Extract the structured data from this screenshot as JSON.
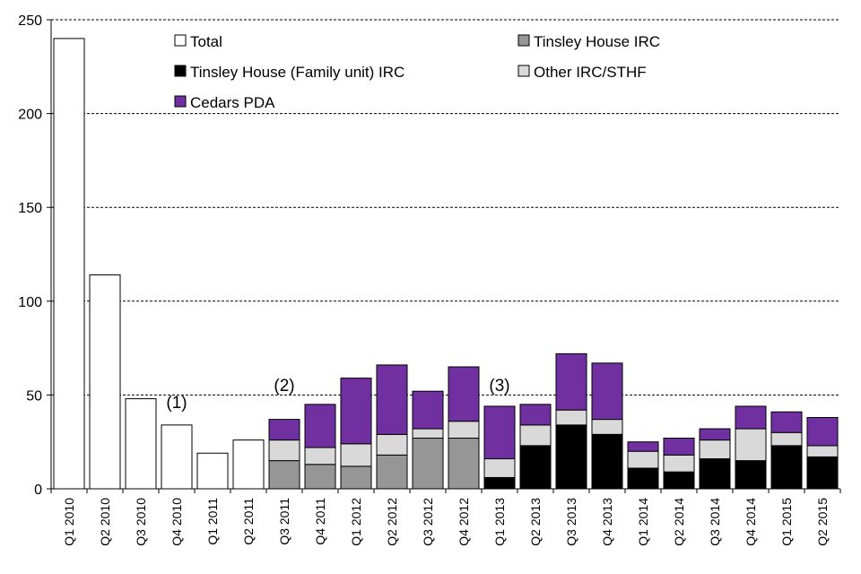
{
  "chart_data": {
    "type": "bar",
    "stacked": true,
    "title": "",
    "xlabel": "",
    "ylabel": "",
    "ylim": [
      0,
      250
    ],
    "yticks": [
      0,
      50,
      100,
      150,
      200,
      250
    ],
    "grid": "horizontal-dashed",
    "legend_position": "top-right",
    "categories": [
      "Q1 2010",
      "Q2 2010",
      "Q3 2010",
      "Q4 2010",
      "Q1 2011",
      "Q2 2011",
      "Q3 2011",
      "Q4 2011",
      "Q1 2012",
      "Q2 2012",
      "Q3 2012",
      "Q4 2012",
      "Q1 2013",
      "Q2 2013",
      "Q3 2013",
      "Q4 2013",
      "Q1 2014",
      "Q2 2014",
      "Q3 2014",
      "Q4 2014",
      "Q1 2015",
      "Q2 2015"
    ],
    "series": [
      {
        "name": "Total",
        "color": "#ffffff",
        "values": [
          240,
          114,
          48,
          34,
          19,
          26,
          0,
          0,
          0,
          0,
          0,
          0,
          0,
          0,
          0,
          0,
          0,
          0,
          0,
          0,
          0,
          0
        ]
      },
      {
        "name": "Tinsley House (Family unit) IRC",
        "color": "#000000",
        "values": [
          0,
          0,
          0,
          0,
          0,
          0,
          0,
          0,
          0,
          0,
          0,
          0,
          6,
          23,
          34,
          29,
          11,
          9,
          16,
          15,
          23,
          17
        ]
      },
      {
        "name": "Tinsley House IRC",
        "color": "#969696",
        "values": [
          0,
          0,
          0,
          0,
          0,
          0,
          15,
          13,
          12,
          18,
          27,
          27,
          0,
          0,
          0,
          0,
          0,
          0,
          0,
          0,
          0,
          0
        ]
      },
      {
        "name": "Other IRC/STHF",
        "color": "#d9d9d9",
        "values": [
          0,
          0,
          0,
          0,
          0,
          0,
          11,
          9,
          12,
          11,
          5,
          9,
          10,
          11,
          8,
          8,
          9,
          9,
          10,
          17,
          7,
          6
        ]
      },
      {
        "name": "Cedars PDA",
        "color": "#7030a0",
        "values": [
          0,
          0,
          0,
          0,
          0,
          0,
          11,
          23,
          35,
          37,
          20,
          29,
          28,
          11,
          30,
          30,
          5,
          9,
          6,
          12,
          11,
          15
        ]
      }
    ],
    "legend": [
      {
        "label": "Total",
        "series": 0
      },
      {
        "label": "Tinsley House IRC",
        "series": 2
      },
      {
        "label": "Tinsley House (Family unit) IRC",
        "series": 1
      },
      {
        "label": "Other IRC/STHF",
        "series": 3
      },
      {
        "label": "Cedars PDA",
        "series": 4
      }
    ],
    "annotations": [
      {
        "text": "(1)",
        "category": 3,
        "y": 43
      },
      {
        "text": "(2)",
        "category": 6,
        "y": 52
      },
      {
        "text": "(3)",
        "category": 12,
        "y": 52
      }
    ]
  }
}
